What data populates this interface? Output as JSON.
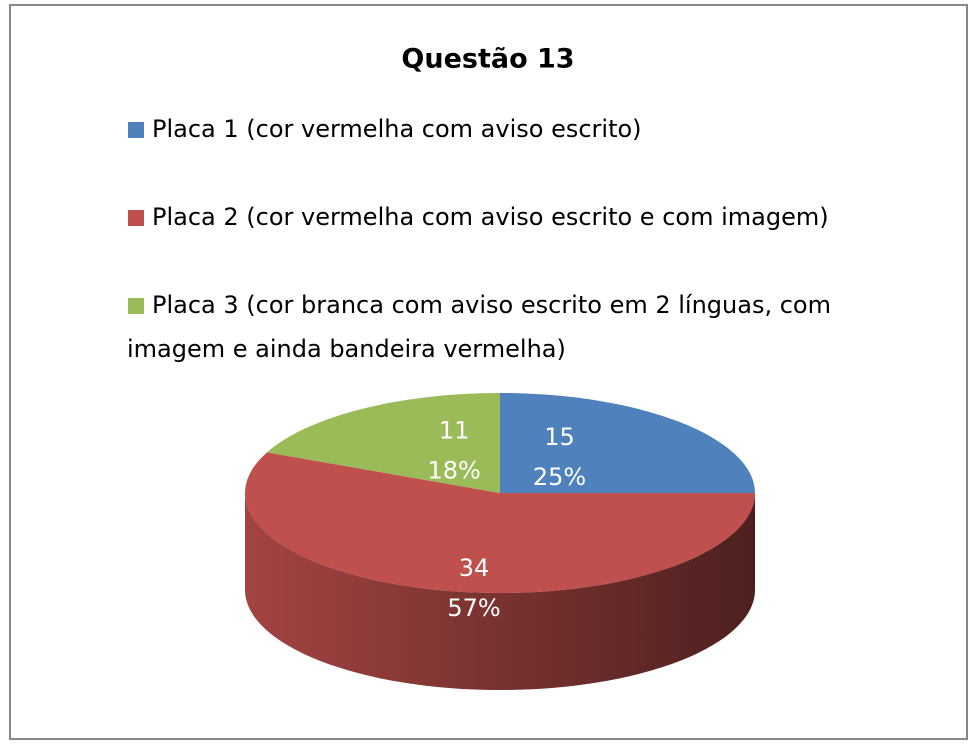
{
  "chart_data": {
    "type": "pie",
    "title": "Questão 13",
    "categories": [
      "Placa 1 (cor vermelha com aviso escrito)",
      "Placa 2 (cor vermelha com aviso escrito e com imagem)",
      "Placa 3   (cor branca com aviso escrito em 2 línguas, com imagem e ainda bandeira vermelha)"
    ],
    "values": [
      15,
      34,
      11
    ],
    "percent_labels": [
      "25%",
      "57%",
      "18%"
    ],
    "colors": [
      "#4f81bd",
      "#c0504d",
      "#9bbb59"
    ],
    "legend": "top"
  }
}
